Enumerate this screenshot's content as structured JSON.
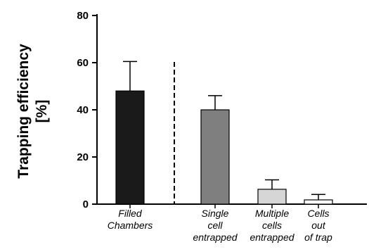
{
  "chart_data": {
    "type": "bar",
    "ylabel_lines": [
      "Trapping efficiency",
      "[%]"
    ],
    "xlabel": "",
    "ylim": [
      0,
      80
    ],
    "yticks": [
      0,
      20,
      40,
      60,
      80
    ],
    "categories": [
      {
        "lines": [
          "Filled",
          "Chambers"
        ],
        "value": 48,
        "error": 12.5,
        "color": "#1a1a1a"
      },
      {
        "lines": [
          "Single",
          "cell",
          "entrapped"
        ],
        "value": 40,
        "error": 6,
        "color": "#7f7f7f"
      },
      {
        "lines": [
          "Multiple",
          "cells",
          "entrapped"
        ],
        "value": 6.3,
        "error": 4,
        "color": "#d6d6d6"
      },
      {
        "lines": [
          "Cells",
          "out",
          "of trap"
        ],
        "value": 1.8,
        "error": 2.3,
        "color": "#ffffff"
      }
    ],
    "separator_after_category_index": 0,
    "grid": false,
    "legend": "none"
  }
}
